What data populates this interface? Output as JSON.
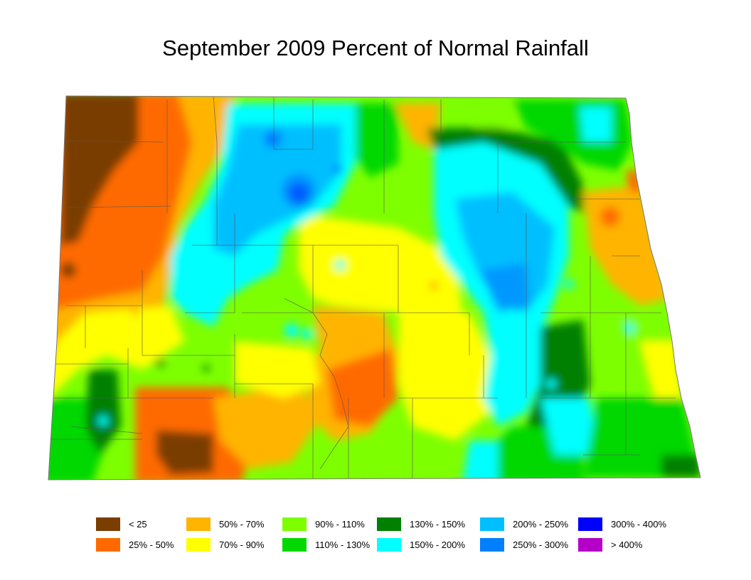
{
  "title": "September 2009 Percent of Normal Rainfall",
  "legend": [
    {
      "label": "< 25",
      "color": "#7a3e00"
    },
    {
      "label": "25% - 50%",
      "color": "#ff6a00"
    },
    {
      "label": "50% - 70%",
      "color": "#ffb400"
    },
    {
      "label": "70% - 90%",
      "color": "#ffff00"
    },
    {
      "label": "90% - 110%",
      "color": "#7dff00"
    },
    {
      "label": "110% - 130%",
      "color": "#00d800"
    },
    {
      "label": "130% - 150%",
      "color": "#008000"
    },
    {
      "label": "150% - 200%",
      "color": "#00ffff"
    },
    {
      "label": "200% - 250%",
      "color": "#00bfff"
    },
    {
      "label": "250% - 300%",
      "color": "#007fff"
    },
    {
      "label": "300% - 400%",
      "color": "#0000ff"
    },
    {
      "label": "> 400%",
      "color": "#b400c8"
    }
  ]
}
